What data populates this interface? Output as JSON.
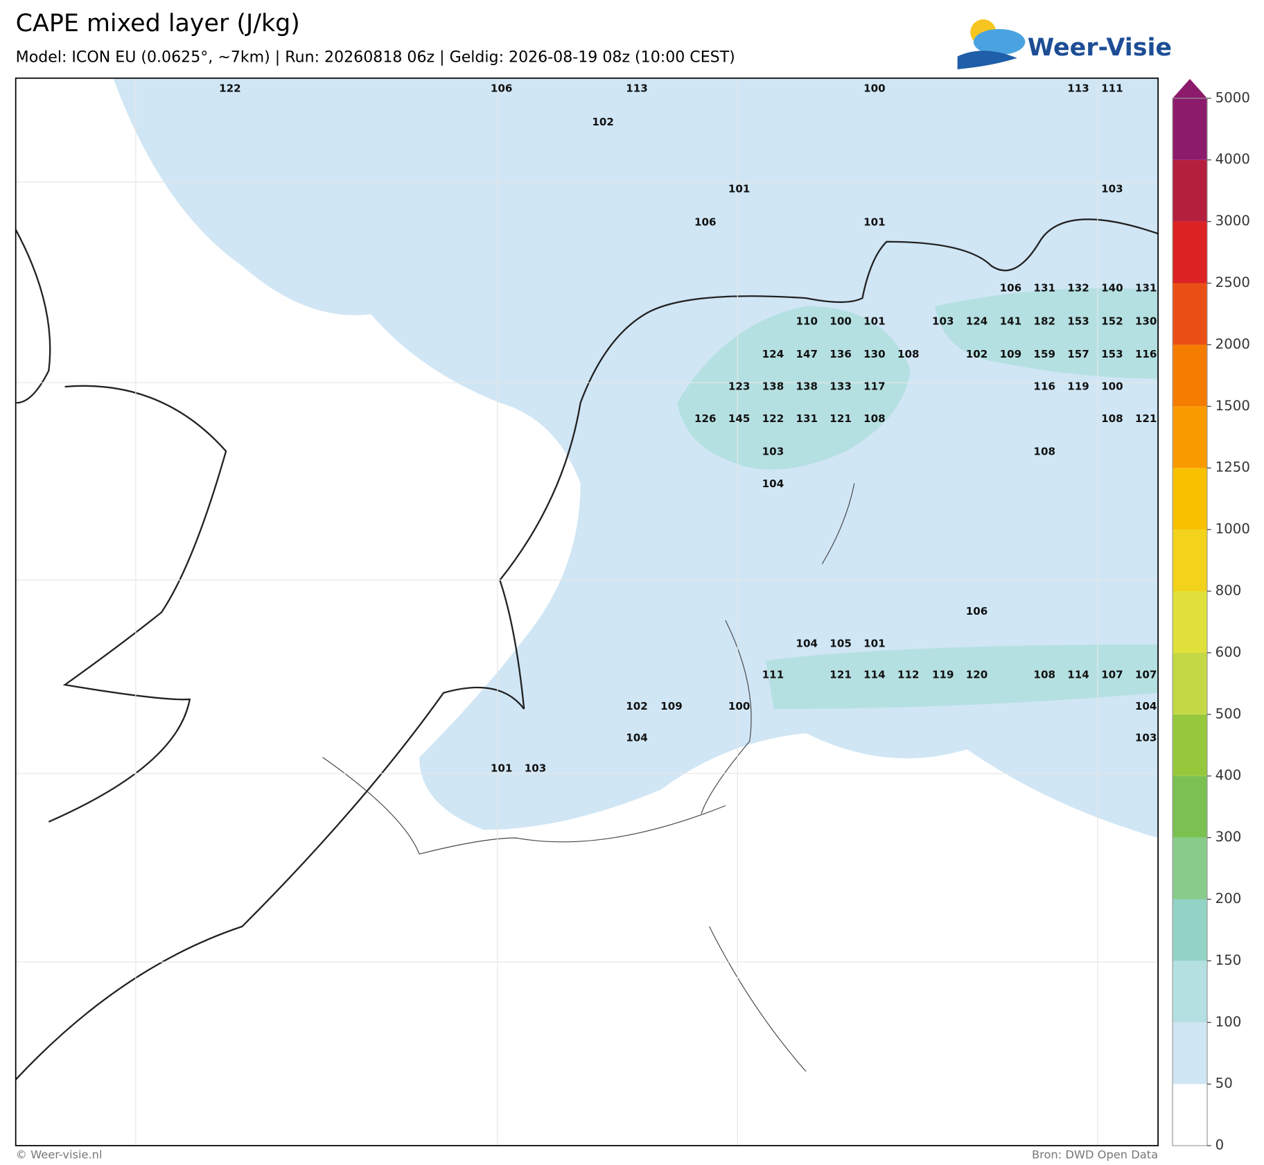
{
  "map": {
    "title": "CAPE mixed layer (J/kg)",
    "subtitle": "Model: ICON EU (0.0625°, ~7km)  |  Run: 20260818 06z  |  Geldig: 2026-08-19 08z (10:00 CEST)",
    "logo": "Weer-Visie",
    "footer_left": "© Weer-visie.nl",
    "footer_right": "Bron: DWD Open Data",
    "colorbar": {
      "ticks": [
        0,
        50,
        100,
        150,
        200,
        300,
        400,
        500,
        600,
        800,
        1000,
        1250,
        1500,
        2000,
        2500,
        3000,
        4000,
        5000
      ],
      "colors": [
        "#ffffff",
        "#d0e6f5",
        "#b5e0e2",
        "#93d3c6",
        "#88cc8c",
        "#7bc151",
        "#96c83c",
        "#c3d944",
        "#dfe039",
        "#f2d21a",
        "#f9c000",
        "#f99a00",
        "#f47c00",
        "#ea5015",
        "#dc2222",
        "#b41f3e",
        "#8c1b6c"
      ]
    },
    "values": [
      122,
      106,
      113,
      100,
      113,
      111,
      102,
      101,
      103,
      106,
      101,
      106,
      131,
      132,
      140,
      131,
      110,
      100,
      101,
      103,
      124,
      141,
      182,
      153,
      152,
      130,
      124,
      147,
      136,
      130,
      108,
      102,
      109,
      159,
      157,
      153,
      116,
      123,
      138,
      138,
      133,
      117,
      116,
      119,
      100,
      126,
      145,
      122,
      131,
      121,
      108,
      108,
      121,
      103,
      108,
      104,
      106,
      104,
      105,
      101,
      111,
      121,
      114,
      112,
      119,
      120,
      108,
      114,
      107,
      107,
      102,
      109,
      100,
      104,
      104,
      103,
      101,
      103
    ]
  }
}
